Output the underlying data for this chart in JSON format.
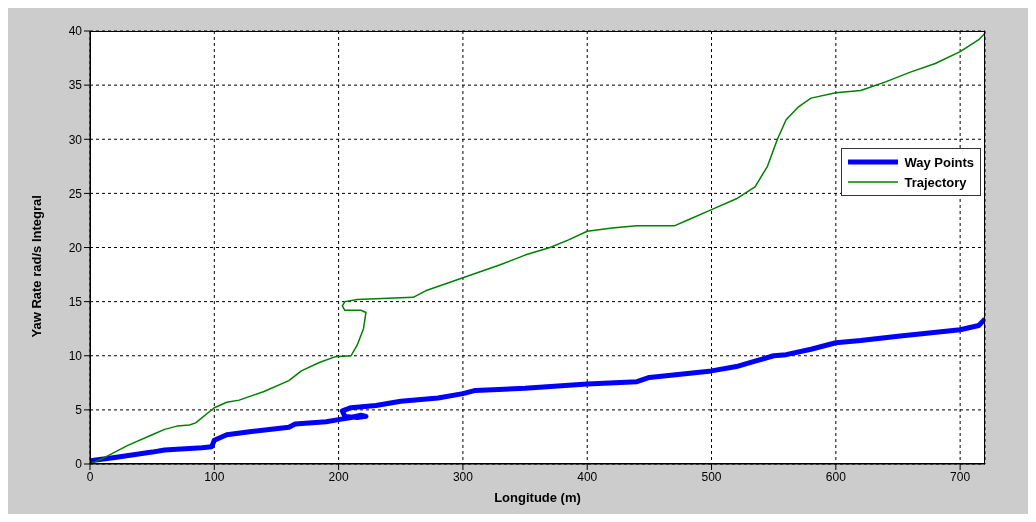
{
  "chart_data": {
    "type": "line",
    "xlabel": "Longitude (m)",
    "ylabel": "Yaw Rate  rad/s Integral",
    "xlim": [
      0,
      720
    ],
    "xticks": [
      0,
      100,
      200,
      300,
      400,
      500,
      600,
      700
    ],
    "ylim": [
      0,
      40
    ],
    "yticks": [
      0,
      5,
      10,
      15,
      20,
      25,
      30,
      35,
      40
    ],
    "grid": true,
    "legend": "right",
    "marker": "none",
    "series": [
      {
        "name": "Way Points",
        "color": "#0000ff",
        "x": [
          0,
          20,
          50,
          60,
          90,
          98,
          100,
          110,
          130,
          160,
          165,
          190,
          200,
          210,
          218,
          222,
          215,
          205,
          203,
          210,
          230,
          250,
          280,
          300,
          310,
          350,
          400,
          440,
          450,
          500,
          520,
          535,
          550,
          560,
          580,
          600,
          620,
          650,
          700,
          715,
          720
        ],
        "values": [
          0.3,
          0.6,
          1.1,
          1.3,
          1.5,
          1.6,
          2.2,
          2.7,
          3.0,
          3.4,
          3.7,
          3.9,
          4.1,
          4.3,
          4.5,
          4.4,
          4.3,
          4.4,
          4.9,
          5.2,
          5.4,
          5.8,
          6.1,
          6.5,
          6.8,
          7.0,
          7.4,
          7.6,
          8.0,
          8.6,
          9.0,
          9.5,
          10.0,
          10.1,
          10.6,
          11.2,
          11.4,
          11.8,
          12.4,
          12.8,
          13.4
        ]
      },
      {
        "name": "Trajectory",
        "color": "#008000",
        "x": [
          0,
          10,
          30,
          50,
          60,
          70,
          80,
          85,
          100,
          110,
          120,
          140,
          160,
          170,
          185,
          197,
          210,
          215,
          220,
          222,
          218,
          205,
          203,
          205,
          215,
          260,
          270,
          300,
          330,
          350,
          370,
          385,
          400,
          420,
          440,
          470,
          480,
          500,
          520,
          535,
          545,
          553,
          560,
          570,
          580,
          600,
          620,
          640,
          660,
          680,
          700,
          715,
          720
        ],
        "values": [
          0,
          0.5,
          1.7,
          2.7,
          3.2,
          3.5,
          3.6,
          3.8,
          5.2,
          5.7,
          5.9,
          6.7,
          7.7,
          8.6,
          9.4,
          9.9,
          10.0,
          11,
          12.5,
          14.0,
          14.2,
          14.2,
          14.6,
          15.0,
          15.2,
          15.4,
          16.0,
          17.2,
          18.4,
          19.3,
          20.0,
          20.7,
          21.5,
          21.8,
          22.0,
          22.0,
          22.5,
          23.5,
          24.5,
          25.6,
          27.5,
          30,
          31.8,
          33.0,
          33.8,
          34.3,
          34.5,
          35.3,
          36.2,
          37.0,
          38.1,
          39.2,
          39.8
        ]
      }
    ]
  }
}
